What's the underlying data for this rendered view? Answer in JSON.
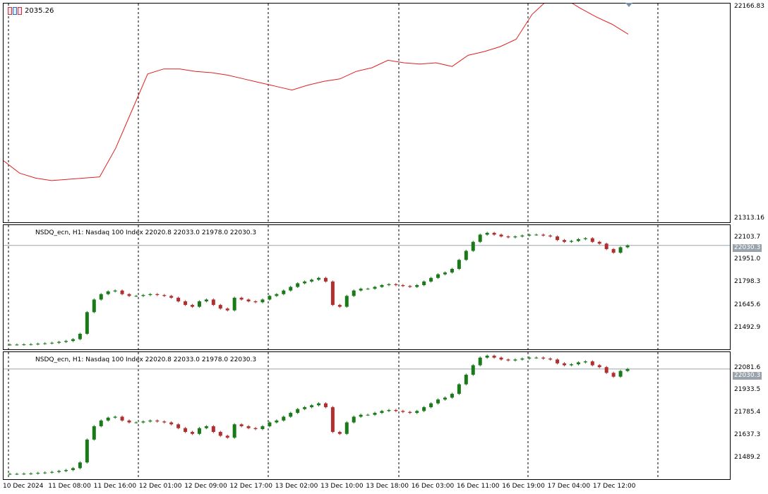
{
  "indicator_label": "2035.26",
  "indicator_label_prefix": "10",
  "panes": [
    {
      "id": "indicator",
      "axis_ticks": [
        "22166.83",
        "21313.16"
      ]
    },
    {
      "id": "price1",
      "label": "NSDQ_ecn, H1:  Nasdaq 100 Index  22020.8 22033.0 21978.0 22030.3",
      "axis_ticks": [
        "22103.7",
        "21951.0",
        "21798.3",
        "21645.6",
        "21492.9"
      ],
      "current_price": "22030.3"
    },
    {
      "id": "price2",
      "label": "NSDQ_ecn, H1:  Nasdaq 100 Index  22020.8 22033.0 21978.0 22030.3",
      "axis_ticks": [
        "22081.6",
        "21933.5",
        "21785.4",
        "21637.3",
        "21489.2"
      ],
      "current_price": "22030.3"
    }
  ],
  "x_axis_labels": [
    "10 Dec 2024",
    "11 Dec 08:00",
    "11 Dec 16:00",
    "12 Dec 01:00",
    "12 Dec 09:00",
    "12 Dec 17:00",
    "13 Dec 02:00",
    "13 Dec 10:00",
    "13 Dec 18:00",
    "16 Dec 03:00",
    "16 Dec 11:00",
    "16 Dec 19:00",
    "17 Dec 04:00",
    "17 Dec 12:00"
  ],
  "colors": {
    "up_candle": "#1a7a1a",
    "down_candle": "#b03030",
    "indicator_line": "#e02020",
    "current_price_line": "#9aa3ab",
    "period_separator": "#000000"
  },
  "chart_data": {
    "type": "line",
    "symbol": "NSDQ_ecn",
    "timeframe": "H1",
    "indicator": {
      "values": [
        21550,
        21500,
        21480,
        21470,
        21475,
        21480,
        21485,
        21600,
        21750,
        21900,
        21920,
        21920,
        21910,
        21905,
        21895,
        21880,
        21865,
        21850,
        21835,
        21855,
        21870,
        21880,
        21910,
        21925,
        21955,
        21945,
        21940,
        21945,
        21930,
        21975,
        21990,
        22010,
        22040,
        22140,
        22200,
        22205,
        22165,
        22130,
        22100,
        22060
      ],
      "ylim": [
        21313.16,
        22166.83
      ]
    },
    "candles": {
      "close_approx": [
        21480,
        21480,
        21481,
        21482,
        21485,
        21487,
        21490,
        21495,
        21500,
        21510,
        21540,
        21660,
        21730,
        21760,
        21775,
        21780,
        21760,
        21750,
        21750,
        21755,
        21760,
        21755,
        21750,
        21740,
        21720,
        21700,
        21690,
        21720,
        21730,
        21700,
        21680,
        21670,
        21740,
        21730,
        21720,
        21715,
        21730,
        21750,
        21760,
        21780,
        21800,
        21820,
        21830,
        21840,
        21850,
        21830,
        21700,
        21690,
        21750,
        21780,
        21790,
        21790,
        21800,
        21810,
        21815,
        21810,
        21805,
        21800,
        21810,
        21830,
        21850,
        21870,
        21880,
        21900,
        21950,
        22000,
        22050,
        22090,
        22100,
        22090,
        22080,
        22075,
        22080,
        22085,
        22090,
        22090,
        22085,
        22080,
        22060,
        22050,
        22055,
        22065,
        22070,
        22050,
        22040,
        22010,
        21990,
        22020,
        22030
      ],
      "ylim_pane1": [
        21492.9,
        22103.7
      ],
      "ylim_pane2": [
        21489.2,
        22081.6
      ],
      "last": {
        "open": 22020.8,
        "high": 22033.0,
        "low": 21978.0,
        "close": 22030.3
      }
    }
  }
}
